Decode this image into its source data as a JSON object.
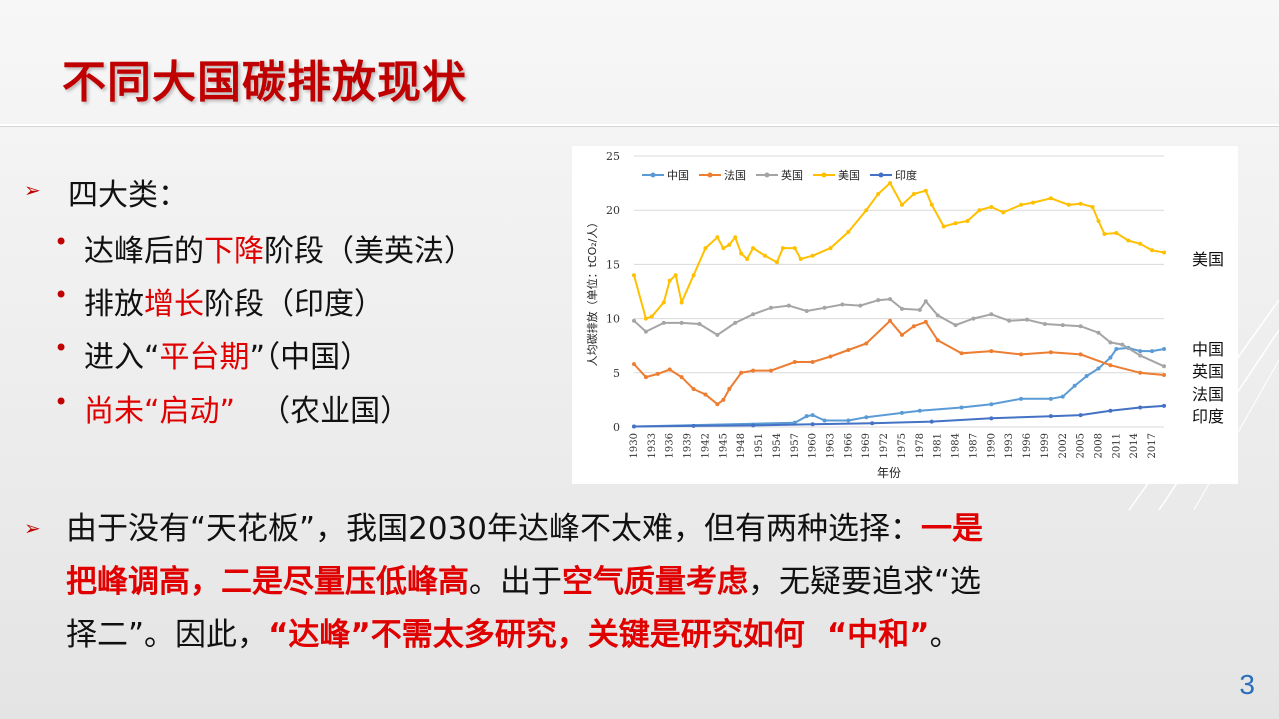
{
  "title": "不同大国碳排放现状",
  "bullets": {
    "heading": "四大类：",
    "items": [
      {
        "pre": "达峰后的",
        "hl": "下降",
        "post": "阶段（美英法）"
      },
      {
        "pre": "排放",
        "hl": "增长",
        "post": "阶段（印度）"
      },
      {
        "pre": "进入“",
        "hl": "平台期",
        "post": "”（中国）"
      },
      {
        "hl": "尚未“启动”",
        "post": "（农业国）"
      }
    ]
  },
  "paragraph": {
    "l1a": "由于没有“天花板”，我国2030年达峰不太难，但有两种选择：",
    "l1b": "一是",
    "l2a": "把峰调高，二是尽量压低峰高",
    "l2b": "。出于",
    "l2c": "空气质量考虑",
    "l2d": "，无疑要追求“选",
    "l3a": "择二”。因此，",
    "l3b": "“达峰”不需太多研究，关键是研究如何",
    "l3c": "“中和”",
    "l3d": "。"
  },
  "page_number": "3",
  "chart_data": {
    "type": "line",
    "ylabel": "人均碳排放（单位：tCO₂/人）",
    "xlabel": "年份",
    "ylim": [
      0,
      25
    ],
    "yticks": [
      0,
      5,
      10,
      15,
      20,
      25
    ],
    "xlim": [
      1930,
      2019
    ],
    "xticks": [
      1930,
      1933,
      1936,
      1939,
      1942,
      1945,
      1948,
      1951,
      1954,
      1957,
      1960,
      1963,
      1966,
      1969,
      1972,
      1975,
      1978,
      1981,
      1984,
      1987,
      1990,
      1993,
      1996,
      1999,
      2002,
      2005,
      2008,
      2011,
      2014,
      2017
    ],
    "legend": [
      "中国",
      "法国",
      "英国",
      "美国",
      "印度"
    ],
    "right_labels": [
      "美国",
      "中国",
      "英国",
      "法国",
      "印度"
    ],
    "series": [
      {
        "name": "中国",
        "color": "#5b9bd5",
        "x": [
          1930,
          1957,
          1959,
          1960,
          1962,
          1966,
          1969,
          1975,
          1978,
          1985,
          1990,
          1995,
          2000,
          2002,
          2004,
          2006,
          2008,
          2010,
          2011,
          2013,
          2015,
          2017,
          2019
        ],
        "y": [
          0.05,
          0.4,
          1.0,
          1.1,
          0.6,
          0.6,
          0.9,
          1.3,
          1.5,
          1.8,
          2.1,
          2.6,
          2.6,
          2.8,
          3.8,
          4.7,
          5.4,
          6.4,
          7.2,
          7.3,
          7.0,
          7.0,
          7.2
        ]
      },
      {
        "name": "法国",
        "color": "#ed7d31",
        "x": [
          1930,
          1932,
          1934,
          1936,
          1938,
          1940,
          1942,
          1944,
          1945,
          1946,
          1948,
          1950,
          1953,
          1957,
          1960,
          1963,
          1966,
          1969,
          1973,
          1975,
          1977,
          1979,
          1981,
          1985,
          1990,
          1995,
          2000,
          2005,
          2010,
          2015,
          2019
        ],
        "y": [
          5.8,
          4.6,
          4.9,
          5.3,
          4.6,
          3.5,
          3.0,
          2.1,
          2.5,
          3.5,
          5.0,
          5.2,
          5.2,
          6.0,
          6.0,
          6.5,
          7.1,
          7.7,
          9.8,
          8.5,
          9.3,
          9.7,
          8.0,
          6.8,
          7.0,
          6.7,
          6.9,
          6.7,
          5.7,
          5.0,
          4.8
        ]
      },
      {
        "name": "英国",
        "color": "#a5a5a5",
        "x": [
          1930,
          1932,
          1935,
          1938,
          1941,
          1944,
          1947,
          1950,
          1953,
          1956,
          1959,
          1962,
          1965,
          1968,
          1971,
          1973,
          1975,
          1978,
          1979,
          1981,
          1984,
          1987,
          1990,
          1993,
          1996,
          1999,
          2002,
          2005,
          2008,
          2010,
          2012,
          2015,
          2019
        ],
        "y": [
          9.8,
          8.8,
          9.6,
          9.6,
          9.5,
          8.5,
          9.6,
          10.4,
          11.0,
          11.2,
          10.7,
          11.0,
          11.3,
          11.2,
          11.7,
          11.8,
          10.9,
          10.8,
          11.6,
          10.3,
          9.4,
          10.0,
          10.4,
          9.8,
          9.9,
          9.5,
          9.4,
          9.3,
          8.7,
          7.8,
          7.6,
          6.6,
          5.6
        ]
      },
      {
        "name": "美国",
        "color": "#ffc000",
        "x": [
          1930,
          1932,
          1933,
          1935,
          1936,
          1937,
          1938,
          1940,
          1942,
          1944,
          1945,
          1946,
          1947,
          1948,
          1949,
          1950,
          1952,
          1954,
          1955,
          1957,
          1958,
          1960,
          1963,
          1966,
          1969,
          1971,
          1973,
          1975,
          1977,
          1979,
          1980,
          1982,
          1984,
          1986,
          1988,
          1990,
          1992,
          1995,
          1997,
          2000,
          2003,
          2005,
          2007,
          2008,
          2009,
          2011,
          2013,
          2015,
          2017,
          2019
        ],
        "y": [
          14.0,
          10.0,
          10.2,
          11.5,
          13.5,
          14.0,
          11.5,
          14.0,
          16.5,
          17.5,
          16.5,
          16.8,
          17.5,
          16.0,
          15.5,
          16.5,
          15.8,
          15.2,
          16.5,
          16.5,
          15.5,
          15.8,
          16.5,
          18.0,
          20.0,
          21.5,
          22.5,
          20.5,
          21.5,
          21.8,
          20.5,
          18.5,
          18.8,
          19.0,
          20.0,
          20.3,
          19.8,
          20.5,
          20.7,
          21.1,
          20.5,
          20.6,
          20.3,
          19.0,
          17.8,
          17.9,
          17.2,
          16.9,
          16.3,
          16.1
        ]
      },
      {
        "name": "印度",
        "color": "#4472c4",
        "x": [
          1930,
          1940,
          1950,
          1960,
          1970,
          1980,
          1990,
          2000,
          2005,
          2010,
          2015,
          2019
        ],
        "y": [
          0.05,
          0.1,
          0.15,
          0.25,
          0.35,
          0.5,
          0.8,
          1.0,
          1.1,
          1.5,
          1.8,
          1.95
        ]
      }
    ]
  }
}
